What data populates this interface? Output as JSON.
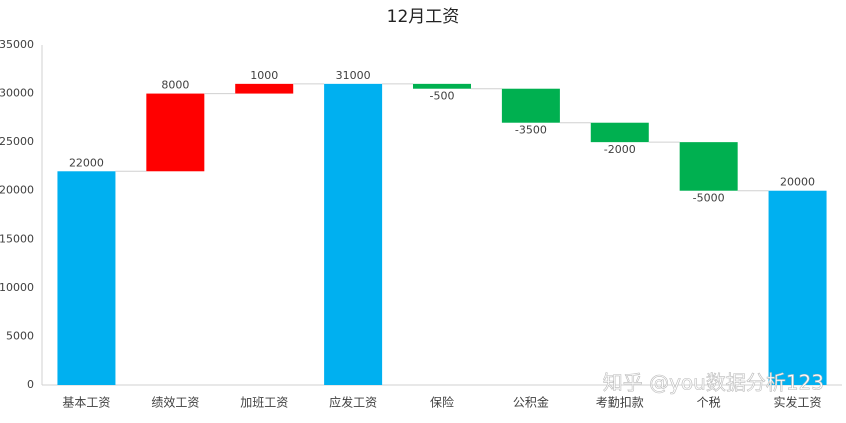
{
  "chart_data": {
    "type": "waterfall",
    "title": "12月工资",
    "categories": [
      "基本工资",
      "绩效工资",
      "加班工资",
      "应发工资",
      "保险",
      "公积金",
      "考勤扣款",
      "个税",
      "实发工资"
    ],
    "values": [
      22000,
      8000,
      1000,
      31000,
      -500,
      -3500,
      -2000,
      -5000,
      20000
    ],
    "measure": [
      "absolute",
      "relative",
      "relative",
      "absolute",
      "relative",
      "relative",
      "relative",
      "relative",
      "absolute"
    ],
    "colors": {
      "total": "#00b0f0",
      "increase": "#ff0000",
      "decrease": "#00b050"
    },
    "ylim": [
      0,
      35000
    ],
    "yticks": [
      0,
      5000,
      10000,
      15000,
      20000,
      25000,
      30000,
      35000
    ],
    "grid": false,
    "watermark": "知乎 @you数据分析123"
  }
}
